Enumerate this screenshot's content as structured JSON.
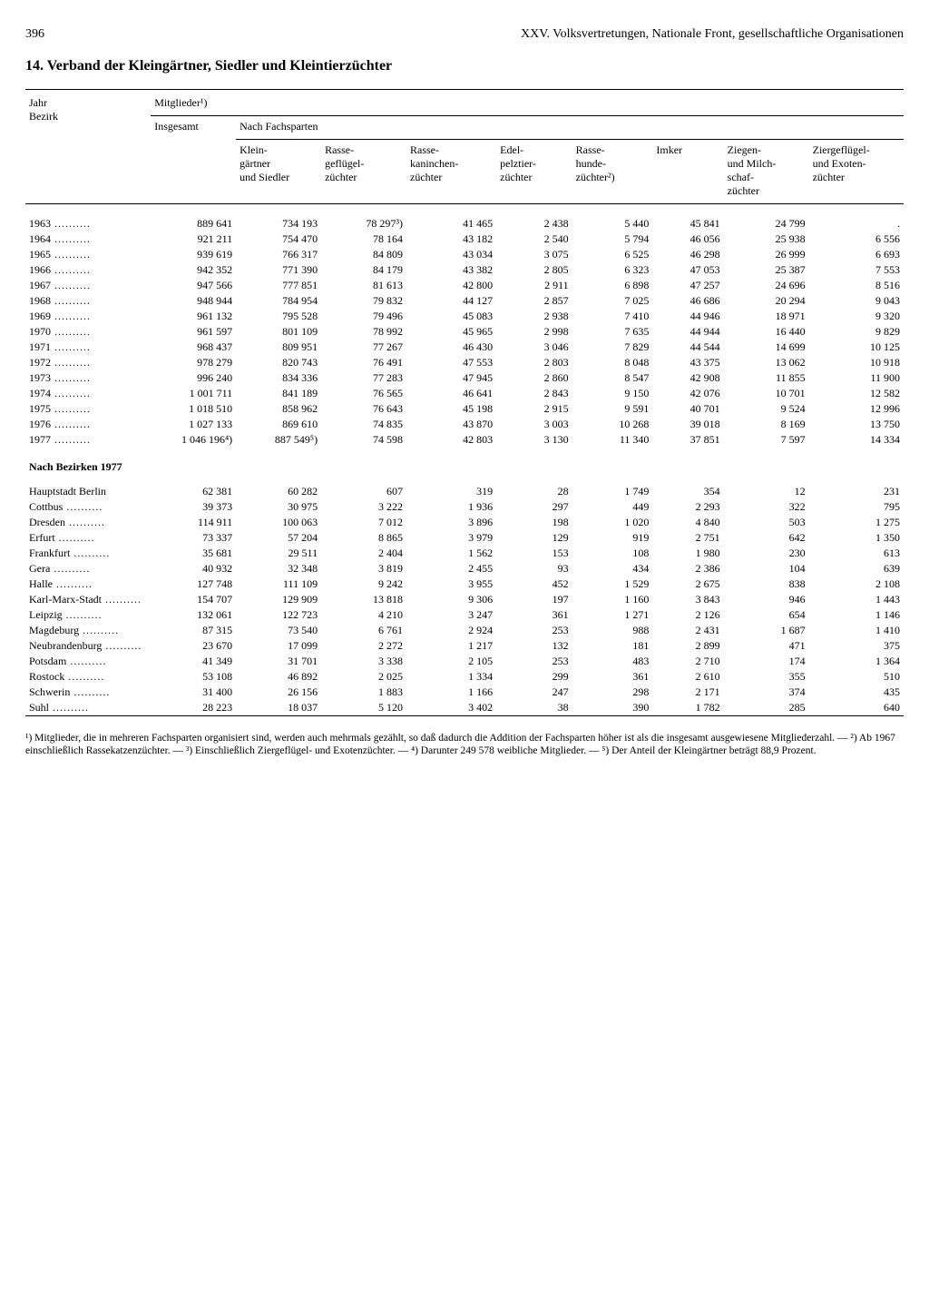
{
  "page": {
    "page_number": "396",
    "running_head": "XXV. Volksvertretungen, Nationale Front, gesellschaftliche Organisationen",
    "title": "14. Verband der Kleingärtner, Siedler und Kleintierzüchter"
  },
  "table": {
    "stub_head_1": "Jahr",
    "stub_head_2": "Bezirk",
    "super_head": "Mitglieder¹)",
    "col_insgesamt": "Insgesamt",
    "col_nach_fachsparten": "Nach Fachsparten",
    "cols": {
      "c1": "Klein-\ngärtner\nund Siedler",
      "c2": "Rasse-\ngeflügel-\nzüchter",
      "c3": "Rasse-\nkaninchen-\nzüchter",
      "c4": "Edel-\npelztier-\nzüchter",
      "c5": "Rasse-\nhunde-\nzüchter²)",
      "c6": "Imker",
      "c7": "Ziegen-\nund Milch-\nschaf-\nzüchter",
      "c8": "Ziergeflügel-\nund Exoten-\nzüchter"
    },
    "years": [
      {
        "y": "1963",
        "ins": "889 641",
        "c1": "734 193",
        "c2": "78 297³)",
        "c3": "41 465",
        "c4": "2 438",
        "c5": "5 440",
        "c6": "45 841",
        "c7": "24 799",
        "c8": "."
      },
      {
        "y": "1964",
        "ins": "921 211",
        "c1": "754 470",
        "c2": "78 164",
        "c3": "43 182",
        "c4": "2 540",
        "c5": "5 794",
        "c6": "46 056",
        "c7": "25 938",
        "c8": "6 556"
      },
      {
        "y": "1965",
        "ins": "939 619",
        "c1": "766 317",
        "c2": "84 809",
        "c3": "43 034",
        "c4": "3 075",
        "c5": "6 525",
        "c6": "46 298",
        "c7": "26 999",
        "c8": "6 693"
      },
      {
        "y": "1966",
        "ins": "942 352",
        "c1": "771 390",
        "c2": "84 179",
        "c3": "43 382",
        "c4": "2 805",
        "c5": "6 323",
        "c6": "47 053",
        "c7": "25 387",
        "c8": "7 553"
      },
      {
        "y": "1967",
        "ins": "947 566",
        "c1": "777 851",
        "c2": "81 613",
        "c3": "42 800",
        "c4": "2 911",
        "c5": "6 898",
        "c6": "47 257",
        "c7": "24 696",
        "c8": "8 516"
      },
      {
        "y": "1968",
        "ins": "948 944",
        "c1": "784 954",
        "c2": "79 832",
        "c3": "44 127",
        "c4": "2 857",
        "c5": "7 025",
        "c6": "46 686",
        "c7": "20 294",
        "c8": "9 043"
      },
      {
        "y": "1969",
        "ins": "961 132",
        "c1": "795 528",
        "c2": "79 496",
        "c3": "45 083",
        "c4": "2 938",
        "c5": "7 410",
        "c6": "44 946",
        "c7": "18 971",
        "c8": "9 320"
      },
      {
        "y": "1970",
        "ins": "961 597",
        "c1": "801 109",
        "c2": "78 992",
        "c3": "45 965",
        "c4": "2 998",
        "c5": "7 635",
        "c6": "44 944",
        "c7": "16 440",
        "c8": "9 829"
      },
      {
        "y": "1971",
        "ins": "968 437",
        "c1": "809 951",
        "c2": "77 267",
        "c3": "46 430",
        "c4": "3 046",
        "c5": "7 829",
        "c6": "44 544",
        "c7": "14 699",
        "c8": "10 125"
      },
      {
        "y": "1972",
        "ins": "978 279",
        "c1": "820 743",
        "c2": "76 491",
        "c3": "47 553",
        "c4": "2 803",
        "c5": "8 048",
        "c6": "43 375",
        "c7": "13 062",
        "c8": "10 918"
      },
      {
        "y": "1973",
        "ins": "996 240",
        "c1": "834 336",
        "c2": "77 283",
        "c3": "47 945",
        "c4": "2 860",
        "c5": "8 547",
        "c6": "42 908",
        "c7": "11 855",
        "c8": "11 900"
      },
      {
        "y": "1974",
        "ins": "1 001 711",
        "c1": "841 189",
        "c2": "76 565",
        "c3": "46 641",
        "c4": "2 843",
        "c5": "9 150",
        "c6": "42 076",
        "c7": "10 701",
        "c8": "12 582"
      },
      {
        "y": "1975",
        "ins": "1 018 510",
        "c1": "858 962",
        "c2": "76 643",
        "c3": "45 198",
        "c4": "2 915",
        "c5": "9 591",
        "c6": "40 701",
        "c7": "9 524",
        "c8": "12 996"
      },
      {
        "y": "1976",
        "ins": "1 027 133",
        "c1": "869 610",
        "c2": "74 835",
        "c3": "43 870",
        "c4": "3 003",
        "c5": "10 268",
        "c6": "39 018",
        "c7": "8 169",
        "c8": "13 750"
      },
      {
        "y": "1977",
        "ins": "1 046 196⁴)",
        "c1": "887 549⁵)",
        "c2": "74 598",
        "c3": "42 803",
        "c4": "3 130",
        "c5": "11 340",
        "c6": "37 851",
        "c7": "7 597",
        "c8": "14 334"
      }
    ],
    "bezirk_head": "Nach Bezirken 1977",
    "bezirke": [
      {
        "b": "Hauptstadt Berlin",
        "ins": "62 381",
        "c1": "60 282",
        "c2": "607",
        "c3": "319",
        "c4": "28",
        "c5": "1 749",
        "c6": "354",
        "c7": "12",
        "c8": "231"
      },
      {
        "b": "Cottbus",
        "ins": "39 373",
        "c1": "30 975",
        "c2": "3 222",
        "c3": "1 936",
        "c4": "297",
        "c5": "449",
        "c6": "2 293",
        "c7": "322",
        "c8": "795"
      },
      {
        "b": "Dresden",
        "ins": "114 911",
        "c1": "100 063",
        "c2": "7 012",
        "c3": "3 896",
        "c4": "198",
        "c5": "1 020",
        "c6": "4 840",
        "c7": "503",
        "c8": "1 275"
      },
      {
        "b": "Erfurt",
        "ins": "73 337",
        "c1": "57 204",
        "c2": "8 865",
        "c3": "3 979",
        "c4": "129",
        "c5": "919",
        "c6": "2 751",
        "c7": "642",
        "c8": "1 350"
      },
      {
        "b": "Frankfurt",
        "ins": "35 681",
        "c1": "29 511",
        "c2": "2 404",
        "c3": "1 562",
        "c4": "153",
        "c5": "108",
        "c6": "1 980",
        "c7": "230",
        "c8": "613"
      },
      {
        "b": "Gera",
        "ins": "40 932",
        "c1": "32 348",
        "c2": "3 819",
        "c3": "2 455",
        "c4": "93",
        "c5": "434",
        "c6": "2 386",
        "c7": "104",
        "c8": "639"
      },
      {
        "b": "Halle",
        "ins": "127 748",
        "c1": "111 109",
        "c2": "9 242",
        "c3": "3 955",
        "c4": "452",
        "c5": "1 529",
        "c6": "2 675",
        "c7": "838",
        "c8": "2 108"
      },
      {
        "b": "Karl-Marx-Stadt",
        "ins": "154 707",
        "c1": "129 909",
        "c2": "13 818",
        "c3": "9 306",
        "c4": "197",
        "c5": "1 160",
        "c6": "3 843",
        "c7": "946",
        "c8": "1 443"
      },
      {
        "b": "Leipzig",
        "ins": "132 061",
        "c1": "122 723",
        "c2": "4 210",
        "c3": "3 247",
        "c4": "361",
        "c5": "1 271",
        "c6": "2 126",
        "c7": "654",
        "c8": "1 146"
      },
      {
        "b": "Magdeburg",
        "ins": "87 315",
        "c1": "73 540",
        "c2": "6 761",
        "c3": "2 924",
        "c4": "253",
        "c5": "988",
        "c6": "2 431",
        "c7": "1 687",
        "c8": "1 410"
      },
      {
        "b": "Neubrandenburg",
        "ins": "23 670",
        "c1": "17 099",
        "c2": "2 272",
        "c3": "1 217",
        "c4": "132",
        "c5": "181",
        "c6": "2 899",
        "c7": "471",
        "c8": "375"
      },
      {
        "b": "Potsdam",
        "ins": "41 349",
        "c1": "31 701",
        "c2": "3 338",
        "c3": "2 105",
        "c4": "253",
        "c5": "483",
        "c6": "2 710",
        "c7": "174",
        "c8": "1 364"
      },
      {
        "b": "Rostock",
        "ins": "53 108",
        "c1": "46 892",
        "c2": "2 025",
        "c3": "1 334",
        "c4": "299",
        "c5": "361",
        "c6": "2 610",
        "c7": "355",
        "c8": "510"
      },
      {
        "b": "Schwerin",
        "ins": "31 400",
        "c1": "26 156",
        "c2": "1 883",
        "c3": "1 166",
        "c4": "247",
        "c5": "298",
        "c6": "2 171",
        "c7": "374",
        "c8": "435"
      },
      {
        "b": "Suhl",
        "ins": "28 223",
        "c1": "18 037",
        "c2": "5 120",
        "c3": "3 402",
        "c4": "38",
        "c5": "390",
        "c6": "1 782",
        "c7": "285",
        "c8": "640"
      }
    ]
  },
  "footnotes": "¹) Mitglieder, die in mehreren Fachsparten organisiert sind, werden auch mehrmals gezählt, so daß dadurch die Addition der Fachsparten höher ist als die insgesamt ausgewiesene Mitgliederzahl. — ²) Ab 1967 einschließlich Rassekatzenzüchter. — ³) Einschließlich Ziergeflügel- und Exotenzüchter. — ⁴) Darunter 249 578 weibliche Mitglieder. — ⁵) Der Anteil der Kleingärtner beträgt 88,9 Prozent."
}
